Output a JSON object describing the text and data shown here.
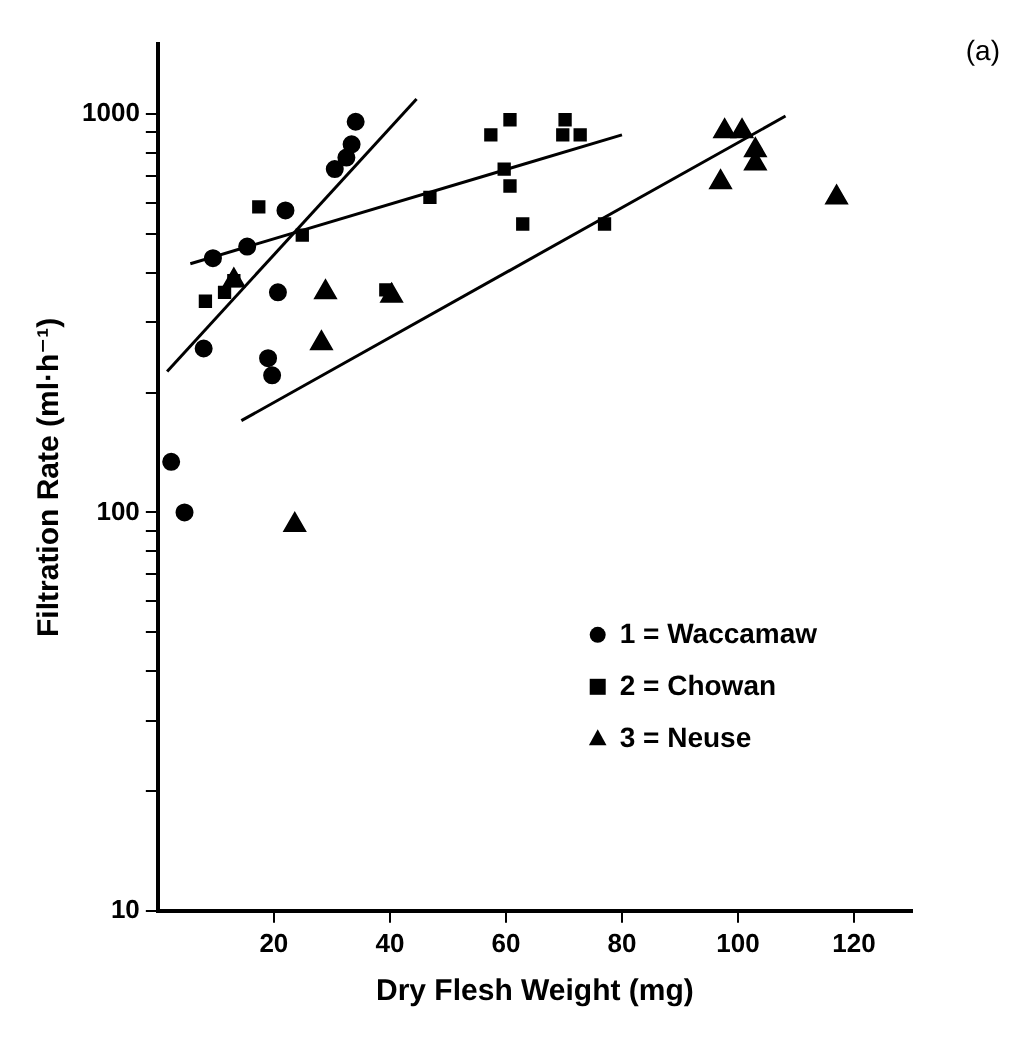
{
  "chart_data": {
    "type": "scatter",
    "xlabel": "Dry Flesh Weight (mg)",
    "ylabel": "Filtration Rate (ml·h⁻¹)",
    "annotations": [
      "(a)"
    ],
    "log": "y",
    "legend": "bottom right",
    "xlim": [
      0,
      130
    ],
    "xticks": [
      20,
      40,
      60,
      80,
      100,
      120
    ],
    "ylim": [
      10,
      1500
    ],
    "yticks": [
      10,
      {
        "value": 20,
        "label": null
      },
      {
        "value": 30,
        "label": null
      },
      {
        "value": 40,
        "label": null
      },
      {
        "value": 50,
        "label": null
      },
      {
        "value": 60,
        "label": null
      },
      {
        "value": 70,
        "label": null
      },
      {
        "value": 80,
        "label": null
      },
      {
        "value": 90,
        "label": null
      },
      100,
      {
        "value": 200,
        "label": null
      },
      {
        "value": 300,
        "label": null
      },
      {
        "value": 400,
        "label": null
      },
      {
        "value": 500,
        "label": null
      },
      {
        "value": 600,
        "label": null
      },
      {
        "value": 700,
        "label": null
      },
      {
        "value": 800,
        "label": null
      },
      {
        "value": 900,
        "label": null
      },
      1000
    ],
    "series": [
      {
        "name": "1 = Waccamaw",
        "marker": "circle",
        "color": "#000000",
        "x": [
          2.3,
          4.6,
          7.9,
          19,
          19.7,
          20.7,
          9.5,
          15.4,
          22,
          30.5,
          32.5,
          33.4,
          34.1
        ],
        "values": [
          134,
          100,
          258,
          244,
          221,
          357,
          435,
          465,
          573,
          728,
          778,
          840,
          957
        ]
      },
      {
        "name": "2 = Chowan",
        "marker": "square",
        "color": "#000000",
        "x": [
          17.4,
          24.9,
          8.2,
          11.5,
          13.1,
          39.3,
          46.9,
          57.4,
          60.7,
          59.7,
          60.7,
          62.9,
          70.2,
          69.8,
          72.8,
          77
        ],
        "values": [
          585,
          497,
          339,
          357,
          382,
          362,
          618,
          887,
          968,
          728,
          660,
          530,
          968,
          887,
          887,
          530
        ]
      },
      {
        "name": "3 = Neuse",
        "marker": "triangle",
        "color": "#000000",
        "x": [
          13.1,
          28.9,
          28.2,
          40.3,
          23.6,
          97.7,
          100.7,
          103,
          103,
          97,
          117
        ],
        "values": [
          382,
          357,
          266,
          350,
          93,
          906,
          906,
          812,
          752,
          675,
          618
        ]
      },
      {
        "type": "line",
        "color": "#000000",
        "marker": "none",
        "x": [
          1.6,
          44.6
        ],
        "values": [
          226,
          1091
        ]
      },
      {
        "type": "line",
        "color": "#000000",
        "marker": "none",
        "x": [
          5.6,
          80
        ],
        "values": [
          421,
          887
        ]
      },
      {
        "type": "line",
        "color": "#000000",
        "marker": "none",
        "x": [
          14.4,
          108.2
        ],
        "values": [
          170,
          989
        ]
      }
    ]
  }
}
